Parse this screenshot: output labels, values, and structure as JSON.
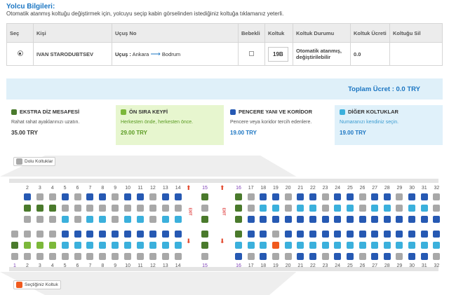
{
  "header": {
    "title": "Yolcu Bilgileri:",
    "description": "Otomatik atanmış koltuğu değiştirmek için, yolcuyu seçip kabin görselinden istediğiniz koltuğa tıklamanız yeterli."
  },
  "table": {
    "headers": [
      "Seç",
      "Kişi",
      "Uçuş No",
      "Bebekli",
      "Koltuk",
      "Koltuk Durumu",
      "Koltuk Ücreti",
      "Koltuğu Sil"
    ],
    "row": {
      "name": "IVAN STARODUBTSEV",
      "flight_prefix": "Uçuş :",
      "from": "Ankara",
      "to": "Bodrum",
      "seat": "19B",
      "status": "Otomatik atanmış, değiştirilebilir",
      "fee": "0.0"
    }
  },
  "total": "Toplam Ücret : 0.0 TRY",
  "legend": [
    {
      "title": "EKSTRA DİZ MESAFESİ",
      "desc": "Rahat rahat ayaklarınızı uzatın.",
      "price": "35.00 TRY",
      "color": "#4a7a2c",
      "bg": "#fff"
    },
    {
      "title": "ÖN SIRA KEYFİ",
      "desc": "Herkesten önde, herkesten önce.",
      "price": "29.00 TRY",
      "color": "#7cb83a",
      "bg": "#e7f6cf"
    },
    {
      "title": "PENCERE YANI VE KORİDOR",
      "desc": "Pencere veya koridor tercih edenlere.",
      "price": "19.00 TRY",
      "color": "#2659b3",
      "bg": "#fff"
    },
    {
      "title": "DİĞER KOLTUKLAR",
      "desc": "Numaranızı kendiniz seçin.",
      "price": "19.00 TRY",
      "color": "#3bb0dc",
      "bg": "#e0f1fa"
    }
  ],
  "cabin": {
    "occupied_label": "Dolu Koltuklar",
    "selected_label": "Seçtiğiniz Koltuk",
    "exit_label": "EXIT",
    "top_rows": [
      "2",
      "3",
      "4",
      "5",
      "6",
      "7",
      "8",
      "9",
      "10",
      "11",
      "12",
      "13",
      "14",
      "15",
      "16",
      "17",
      "18",
      "19",
      "20",
      "21",
      "22",
      "23",
      "24",
      "25",
      "26",
      "27",
      "28",
      "29",
      "30",
      "31",
      "32"
    ],
    "bottom_rows": [
      "1",
      "2",
      "3",
      "4",
      "5",
      "6",
      "7",
      "8",
      "9",
      "10",
      "11",
      "12",
      "13",
      "14",
      "15",
      "16",
      "17",
      "18",
      "19",
      "20",
      "21",
      "22",
      "23",
      "24",
      "25",
      "26",
      "27",
      "28",
      "29",
      "30",
      "31",
      "32"
    ],
    "colors": {
      "occupied": "#a8a8a8",
      "extra_leg": "#4a7a2c",
      "front_row": "#7cb83a",
      "window_aisle": "#2659b3",
      "other": "#3bb0dc",
      "selected": "#f05a1e"
    }
  }
}
